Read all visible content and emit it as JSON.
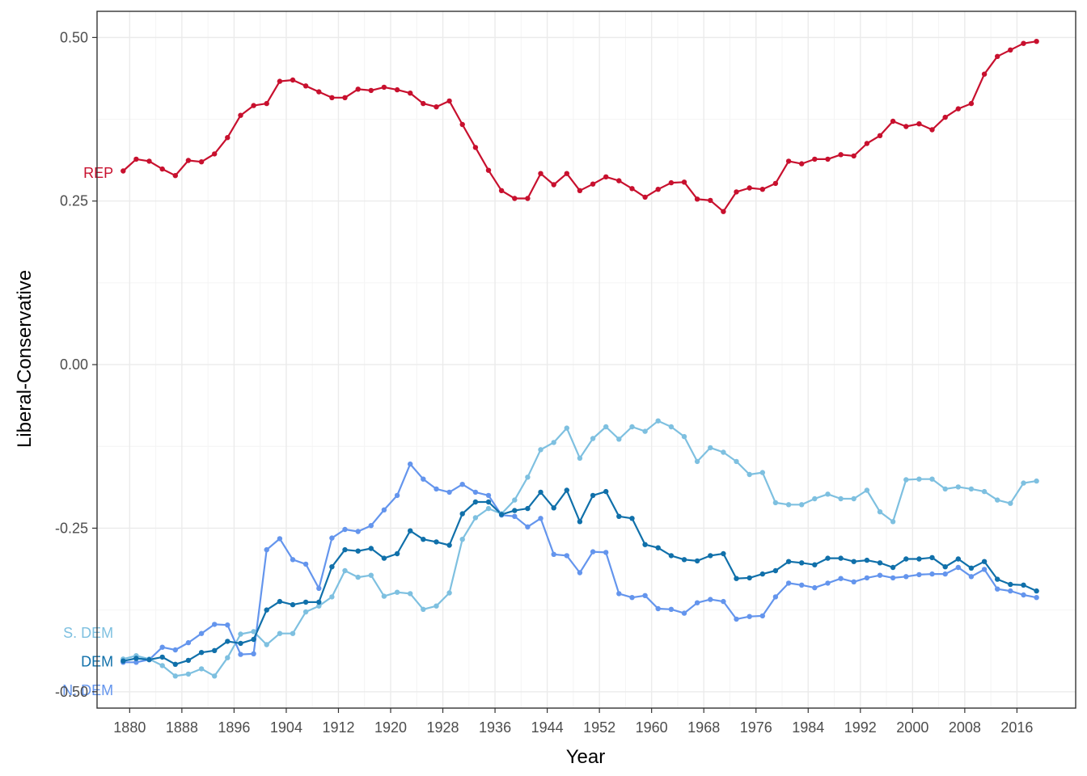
{
  "chart_data": {
    "type": "line",
    "xlabel": "Year",
    "ylabel": "Liberal-Conservative",
    "xlim": [
      1875,
      2025
    ],
    "ylim": [
      -0.525,
      0.54
    ],
    "x_ticks": [
      1880,
      1888,
      1896,
      1904,
      1912,
      1920,
      1928,
      1936,
      1944,
      1952,
      1960,
      1968,
      1976,
      1984,
      1992,
      2000,
      2008,
      2016
    ],
    "x_tick_labels": [
      "1880",
      "1888",
      "1896",
      "1904",
      "1912",
      "1920",
      "1928",
      "1936",
      "1944",
      "1952",
      "1960",
      "1968",
      "1976",
      "1984",
      "1992",
      "2000",
      "2008",
      "2016"
    ],
    "y_ticks": [
      -0.5,
      -0.25,
      0,
      0.25,
      0.5
    ],
    "y_tick_labels": [
      "-0.50",
      "-0.25",
      "0.00",
      "0.25",
      "0.50"
    ],
    "grid": true,
    "legend": "direct labels at left of lines",
    "x": [
      1879,
      1881,
      1883,
      1885,
      1887,
      1889,
      1891,
      1893,
      1895,
      1897,
      1899,
      1901,
      1903,
      1905,
      1907,
      1909,
      1911,
      1913,
      1915,
      1917,
      1919,
      1921,
      1923,
      1925,
      1927,
      1929,
      1931,
      1933,
      1935,
      1937,
      1939,
      1941,
      1943,
      1945,
      1947,
      1949,
      1951,
      1953,
      1955,
      1957,
      1959,
      1961,
      1963,
      1965,
      1967,
      1969,
      1971,
      1973,
      1975,
      1977,
      1979,
      1981,
      1983,
      1985,
      1987,
      1989,
      1991,
      1993,
      1995,
      1997,
      1999,
      2001,
      2003,
      2005,
      2007,
      2009,
      2011,
      2013,
      2015,
      2017,
      2019
    ],
    "series": [
      {
        "name": "REP",
        "color": "#C8102E",
        "values": [
          0.296,
          0.314,
          0.311,
          0.299,
          0.289,
          0.312,
          0.31,
          0.322,
          0.347,
          0.381,
          0.396,
          0.399,
          0.433,
          0.435,
          0.426,
          0.417,
          0.408,
          0.408,
          0.421,
          0.419,
          0.424,
          0.42,
          0.415,
          0.399,
          0.394,
          0.403,
          0.367,
          0.332,
          0.297,
          0.266,
          0.254,
          0.254,
          0.292,
          0.275,
          0.292,
          0.266,
          0.276,
          0.287,
          0.281,
          0.269,
          0.256,
          0.268,
          0.278,
          0.279,
          0.253,
          0.251,
          0.234,
          0.264,
          0.27,
          0.268,
          0.277,
          0.311,
          0.307,
          0.314,
          0.314,
          0.321,
          0.319,
          0.338,
          0.35,
          0.372,
          0.364,
          0.368,
          0.359,
          0.378,
          0.391,
          0.399,
          0.444,
          0.471,
          0.481,
          0.491,
          0.494
        ]
      },
      {
        "name": "DEM",
        "color": "#1070AA",
        "values": [
          -0.453,
          -0.449,
          -0.451,
          -0.447,
          -0.458,
          -0.452,
          -0.44,
          -0.437,
          -0.423,
          -0.426,
          -0.42,
          -0.375,
          -0.362,
          -0.367,
          -0.363,
          -0.363,
          -0.309,
          -0.283,
          -0.285,
          -0.281,
          -0.296,
          -0.289,
          -0.254,
          -0.267,
          -0.271,
          -0.276,
          -0.228,
          -0.21,
          -0.21,
          -0.229,
          -0.223,
          -0.22,
          -0.195,
          -0.219,
          -0.192,
          -0.24,
          -0.2,
          -0.194,
          -0.232,
          -0.235,
          -0.275,
          -0.28,
          -0.292,
          -0.298,
          -0.3,
          -0.292,
          -0.289,
          -0.327,
          -0.326,
          -0.32,
          -0.315,
          -0.301,
          -0.303,
          -0.306,
          -0.296,
          -0.296,
          -0.301,
          -0.299,
          -0.303,
          -0.31,
          -0.297,
          -0.297,
          -0.295,
          -0.309,
          -0.297,
          -0.311,
          -0.301,
          -0.328,
          -0.336,
          -0.337,
          -0.346
        ]
      },
      {
        "name": "S. DEM",
        "color": "#7EC0E0",
        "values": [
          -0.45,
          -0.445,
          -0.45,
          -0.46,
          -0.476,
          -0.473,
          -0.465,
          -0.476,
          -0.448,
          -0.412,
          -0.408,
          -0.428,
          -0.411,
          -0.411,
          -0.378,
          -0.369,
          -0.355,
          -0.315,
          -0.325,
          -0.322,
          -0.354,
          -0.348,
          -0.35,
          -0.374,
          -0.369,
          -0.349,
          -0.267,
          -0.234,
          -0.22,
          -0.228,
          -0.207,
          -0.172,
          -0.13,
          -0.119,
          -0.097,
          -0.143,
          -0.113,
          -0.095,
          -0.114,
          -0.095,
          -0.102,
          -0.086,
          -0.095,
          -0.11,
          -0.148,
          -0.127,
          -0.134,
          -0.148,
          -0.168,
          -0.165,
          -0.211,
          -0.214,
          -0.214,
          -0.205,
          -0.198,
          -0.205,
          -0.205,
          -0.192,
          -0.225,
          -0.24,
          -0.176,
          -0.175,
          -0.175,
          -0.19,
          -0.187,
          -0.19,
          -0.194,
          -0.207,
          -0.212,
          -0.181,
          -0.178
        ]
      },
      {
        "name": "N. DEM",
        "color": "#6495ED",
        "values": [
          -0.455,
          -0.455,
          -0.451,
          -0.432,
          -0.436,
          -0.425,
          -0.411,
          -0.397,
          -0.398,
          -0.443,
          -0.442,
          -0.283,
          -0.266,
          -0.298,
          -0.305,
          -0.342,
          -0.265,
          -0.252,
          -0.255,
          -0.246,
          -0.222,
          -0.2,
          -0.152,
          -0.175,
          -0.19,
          -0.195,
          -0.183,
          -0.195,
          -0.2,
          -0.23,
          -0.232,
          -0.248,
          -0.235,
          -0.29,
          -0.292,
          -0.318,
          -0.286,
          -0.287,
          -0.35,
          -0.356,
          -0.353,
          -0.373,
          -0.374,
          -0.38,
          -0.364,
          -0.359,
          -0.362,
          -0.389,
          -0.385,
          -0.384,
          -0.355,
          -0.334,
          -0.337,
          -0.341,
          -0.334,
          -0.327,
          -0.332,
          -0.326,
          -0.322,
          -0.326,
          -0.324,
          -0.321,
          -0.32,
          -0.32,
          -0.31,
          -0.324,
          -0.313,
          -0.343,
          -0.346,
          -0.352,
          -0.356
        ]
      }
    ],
    "labels": [
      {
        "text": "REP",
        "x": 1877.5,
        "y": 0.293,
        "color": "#C8102E"
      },
      {
        "text": "S. DEM",
        "x": 1877.5,
        "y": -0.41,
        "color": "#7EC0E0"
      },
      {
        "text": "DEM",
        "x": 1877.5,
        "y": -0.454,
        "color": "#1070AA"
      },
      {
        "text": "N. DEM",
        "x": 1877.5,
        "y": -0.498,
        "color": "#6495ED"
      }
    ],
    "panel": {
      "background": "#ffffff",
      "border": "#333333",
      "grid_major": "#ebebeb",
      "grid_minor": "#f4f4f4"
    }
  }
}
